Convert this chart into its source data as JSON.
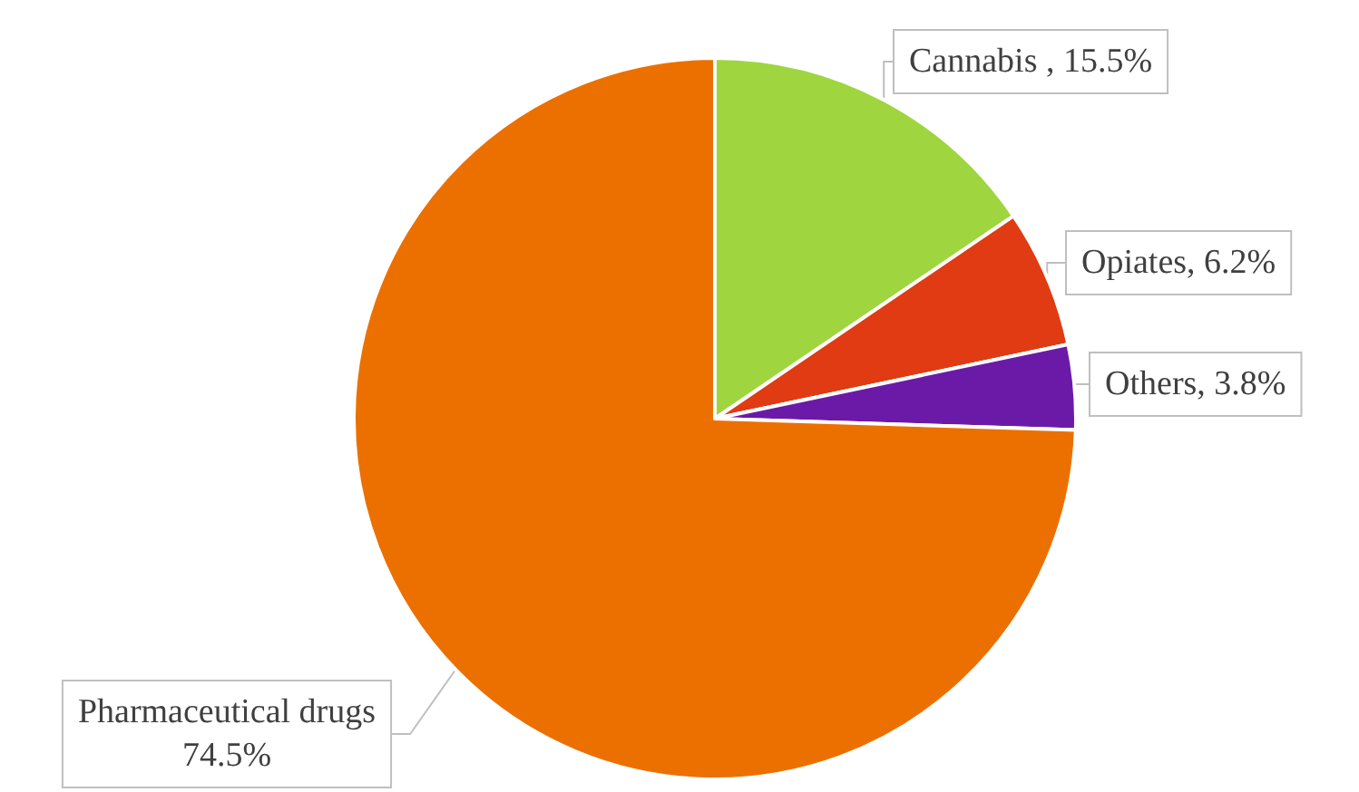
{
  "chart_data": {
    "type": "pie",
    "categories": [
      "Cannabis ",
      "Opiates",
      "Others",
      "Pharmaceutical drugs"
    ],
    "values": [
      15.5,
      6.2,
      3.8,
      74.5
    ],
    "value_labels": [
      "15.5%",
      "6.2%",
      "3.8%",
      "74.5%"
    ],
    "colors": [
      "#9fd53f",
      "#e03b12",
      "#6b1aa8",
      "#ec7000"
    ],
    "legend": false
  }
}
